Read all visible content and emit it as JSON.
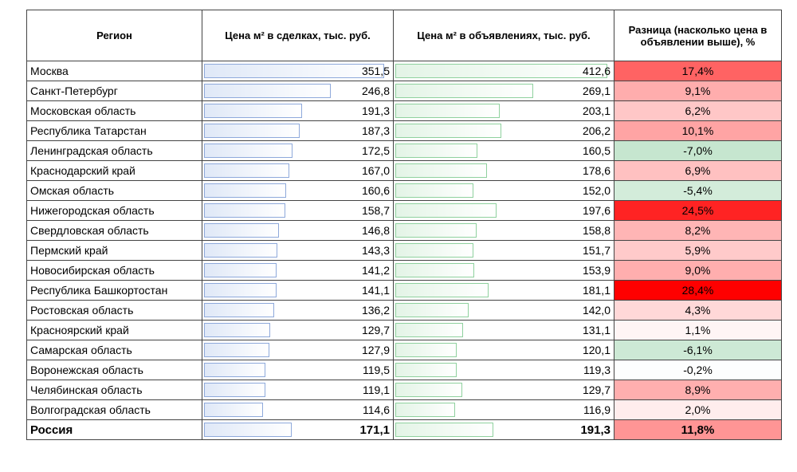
{
  "table": {
    "header": [
      "Регион",
      "Цена м² в сделках, тыс. руб.",
      "Цена м² в объявлениях, тыс. руб.",
      "Разница (насколько цена в объявлении выше), %"
    ],
    "rows": [
      [
        "Москва",
        "351,5",
        "412,6",
        "17,4%"
      ],
      [
        "Санкт-Петербург",
        "246,8",
        "269,1",
        "9,1%"
      ],
      [
        "Московская область",
        "191,3",
        "203,1",
        "6,2%"
      ],
      [
        "Республика Татарстан",
        "187,3",
        "206,2",
        "10,1%"
      ],
      [
        "Ленинградская область",
        "172,5",
        "160,5",
        "-7,0%"
      ],
      [
        "Краснодарский край",
        "167,0",
        "178,6",
        "6,9%"
      ],
      [
        "Омская область",
        "160,6",
        "152,0",
        "-5,4%"
      ],
      [
        "Нижегородская область",
        "158,7",
        "197,6",
        "24,5%"
      ],
      [
        "Свердловская область",
        "146,8",
        "158,8",
        "8,2%"
      ],
      [
        "Пермский край",
        "143,3",
        "151,7",
        "5,9%"
      ],
      [
        "Новосибирская область",
        "141,2",
        "153,9",
        "9,0%"
      ],
      [
        "Республика Башкортостан",
        "141,1",
        "181,1",
        "28,4%"
      ],
      [
        "Ростовская область",
        "136,2",
        "142,0",
        "4,3%"
      ],
      [
        "Красноярский край",
        "129,7",
        "131,1",
        "1,1%"
      ],
      [
        "Самарская область",
        "127,9",
        "120,1",
        "-6,1%"
      ],
      [
        "Воронежская область",
        "119,5",
        "119,3",
        "-0,2%"
      ],
      [
        "Челябинская область",
        "119,1",
        "129,7",
        "8,9%"
      ],
      [
        "Волгоградская область",
        "114,6",
        "116,9",
        "2,0%"
      ]
    ],
    "total": [
      "Россия",
      "171,1",
      "191,3",
      "11,8%"
    ]
  }
}
